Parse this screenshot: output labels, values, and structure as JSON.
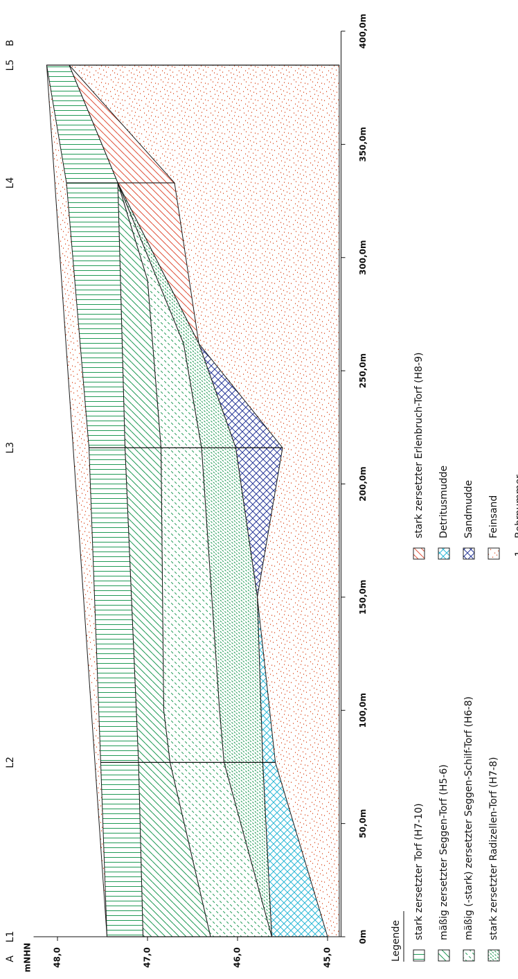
{
  "chart_data": {
    "type": "profile",
    "y_label": "mNHN",
    "start_label": "A",
    "end_label": "B",
    "legend_title": "Legende",
    "xlim": [
      0,
      400
    ],
    "ylim": [
      44.85,
      48.15
    ],
    "xticks": [
      {
        "value": 0,
        "label": "0m"
      },
      {
        "value": 50,
        "label": "50,0m"
      },
      {
        "value": 100,
        "label": "100,0m"
      },
      {
        "value": 150,
        "label": "150,0m"
      },
      {
        "value": 200,
        "label": "200,0m"
      },
      {
        "value": 250,
        "label": "250,0m"
      },
      {
        "value": 300,
        "label": "300,0m"
      },
      {
        "value": 350,
        "label": "350,0m"
      },
      {
        "value": 400,
        "label": "400,0m"
      }
    ],
    "yticks": [
      {
        "value": 45,
        "label": "45,0"
      },
      {
        "value": 46,
        "label": "46,0"
      },
      {
        "value": 47,
        "label": "47,0"
      },
      {
        "value": 48,
        "label": "48,0"
      }
    ],
    "series": [
      {
        "name": "stark  zersetzter  Torf  (H7-10)",
        "color": "#1f9a55",
        "pattern": "lines",
        "x": [
          0,
          77,
          216,
          333,
          385,
          385,
          333,
          216,
          77,
          0
        ],
        "values": [
          47.45,
          47.52,
          47.65,
          47.9,
          48.12,
          47.87,
          47.33,
          47.25,
          47.1,
          47.05
        ]
      },
      {
        "name": "mäßig  zersetzter  Seggen-Torf  (H5-6)",
        "color": "#1f9a55",
        "pattern": "hatch",
        "x": [
          0,
          77,
          216,
          333,
          290,
          216,
          100,
          77,
          0
        ],
        "values": [
          47.05,
          47.1,
          47.25,
          47.33,
          47.0,
          46.85,
          46.82,
          46.75,
          46.3
        ]
      },
      {
        "name": "mäßig  (-stark)  zersetzter  Seggen-Schilf-Torf  (H6-8)",
        "color": "#1f9a55",
        "pattern": "dashed-hatch",
        "x": [
          0,
          77,
          100,
          216,
          290,
          333,
          262,
          216,
          100,
          77,
          0
        ],
        "values": [
          46.3,
          46.75,
          46.82,
          46.85,
          47.0,
          47.33,
          46.6,
          46.4,
          46.2,
          46.15,
          45.62
        ]
      },
      {
        "name": "stark  zersetzter  Radizellen-Torf  (H7-8)",
        "color": "#1f9a55",
        "pattern": "dense-hatch",
        "x": [
          0,
          77,
          100,
          216,
          262,
          333,
          262,
          216,
          150,
          77
        ],
        "values": [
          45.62,
          46.15,
          46.2,
          46.4,
          46.6,
          47.33,
          46.43,
          46.02,
          45.78,
          45.72
        ]
      },
      {
        "name": "stark  zersetzter  Erlenbruch-Torf  (H8-9)",
        "color": "#e0523a",
        "pattern": "hatch",
        "x": [
          262,
          333,
          385,
          333
        ],
        "values": [
          46.43,
          47.33,
          47.87,
          46.7
        ]
      },
      {
        "name": "Detritusmudde",
        "color": "#2bb8d6",
        "pattern": "cross",
        "x": [
          0,
          77,
          150,
          77,
          0
        ],
        "values": [
          45.62,
          45.72,
          45.78,
          45.58,
          45.0
        ]
      },
      {
        "name": "Sandmudde",
        "color": "#2a3a9a",
        "pattern": "cross",
        "x": [
          150,
          216,
          262,
          216
        ],
        "values": [
          45.78,
          46.02,
          46.43,
          45.5
        ]
      },
      {
        "name": "Feinsand",
        "color": "#e0603a",
        "pattern": "dots",
        "x": [
          0,
          0,
          385,
          385
        ],
        "values": [
          44.87,
          47.45,
          48.12,
          44.87
        ]
      }
    ],
    "boreholes": [
      {
        "name": "L1",
        "x": 0,
        "top": 47.45,
        "bottom": 45.0
      },
      {
        "name": "L2",
        "x": 77,
        "top": 47.52,
        "bottom": 45.58
      },
      {
        "name": "L3",
        "x": 216,
        "top": 47.65,
        "bottom": 45.5
      },
      {
        "name": "L4",
        "x": 333,
        "top": 47.9,
        "bottom": 46.7
      },
      {
        "name": "L5",
        "x": 385,
        "top": 48.12,
        "bottom": 44.87
      }
    ],
    "borehole_legend": {
      "symbol": "1",
      "label": "Bohrnummer"
    }
  }
}
